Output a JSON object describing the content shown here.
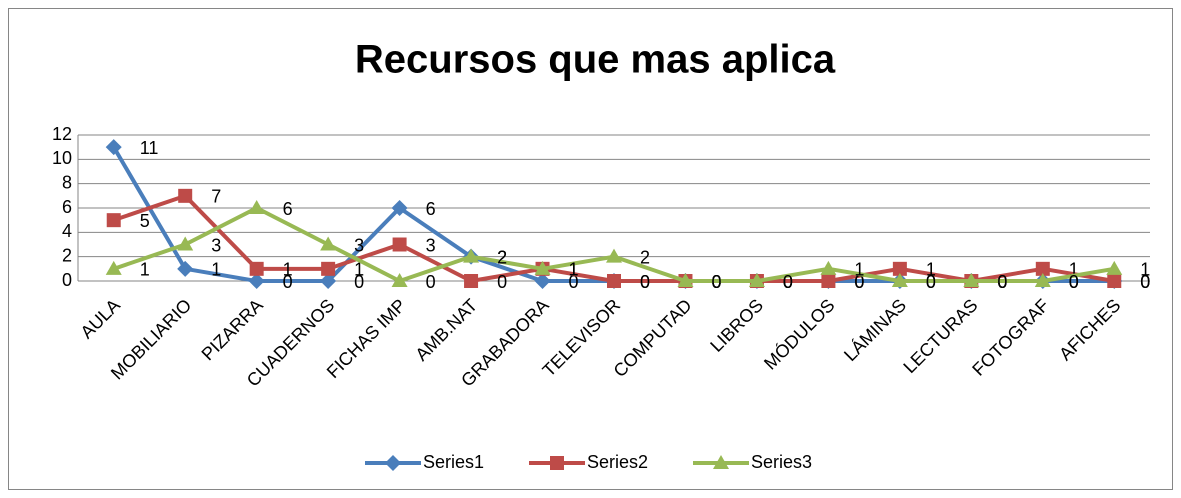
{
  "chart_data": {
    "type": "line",
    "title": "Recursos que mas aplica",
    "categories": [
      "AULA",
      "MOBILIARIO",
      "PIZARRA",
      "CUADERNOS",
      "FICHAS IMP",
      "AMB.NAT",
      "GRABADORA",
      "TELEVISOR",
      "COMPUTAD",
      "LIBROS",
      "MÓDULOS",
      "LÁMINAS",
      "LECTURAS",
      "FOTOGRAF",
      "AFICHES"
    ],
    "series": [
      {
        "name": "Series1",
        "color": "#4a7ebb",
        "marker": "diamond",
        "values": [
          11,
          1,
          0,
          0,
          6,
          2,
          0,
          0,
          0,
          0,
          0,
          0,
          0,
          0,
          0
        ]
      },
      {
        "name": "Series2",
        "color": "#be4b48",
        "marker": "square",
        "values": [
          5,
          7,
          1,
          1,
          3,
          0,
          1,
          0,
          0,
          0,
          0,
          1,
          0,
          1,
          0
        ]
      },
      {
        "name": "Series3",
        "color": "#98b954",
        "marker": "triangle",
        "values": [
          1,
          3,
          6,
          3,
          0,
          2,
          1,
          2,
          0,
          0,
          1,
          0,
          0,
          0,
          1
        ]
      }
    ],
    "ylim": [
      0,
      12
    ],
    "yticks": [
      0,
      2,
      4,
      6,
      8,
      10,
      12
    ],
    "grid": true,
    "legend": "bottom",
    "data_labels": true
  }
}
